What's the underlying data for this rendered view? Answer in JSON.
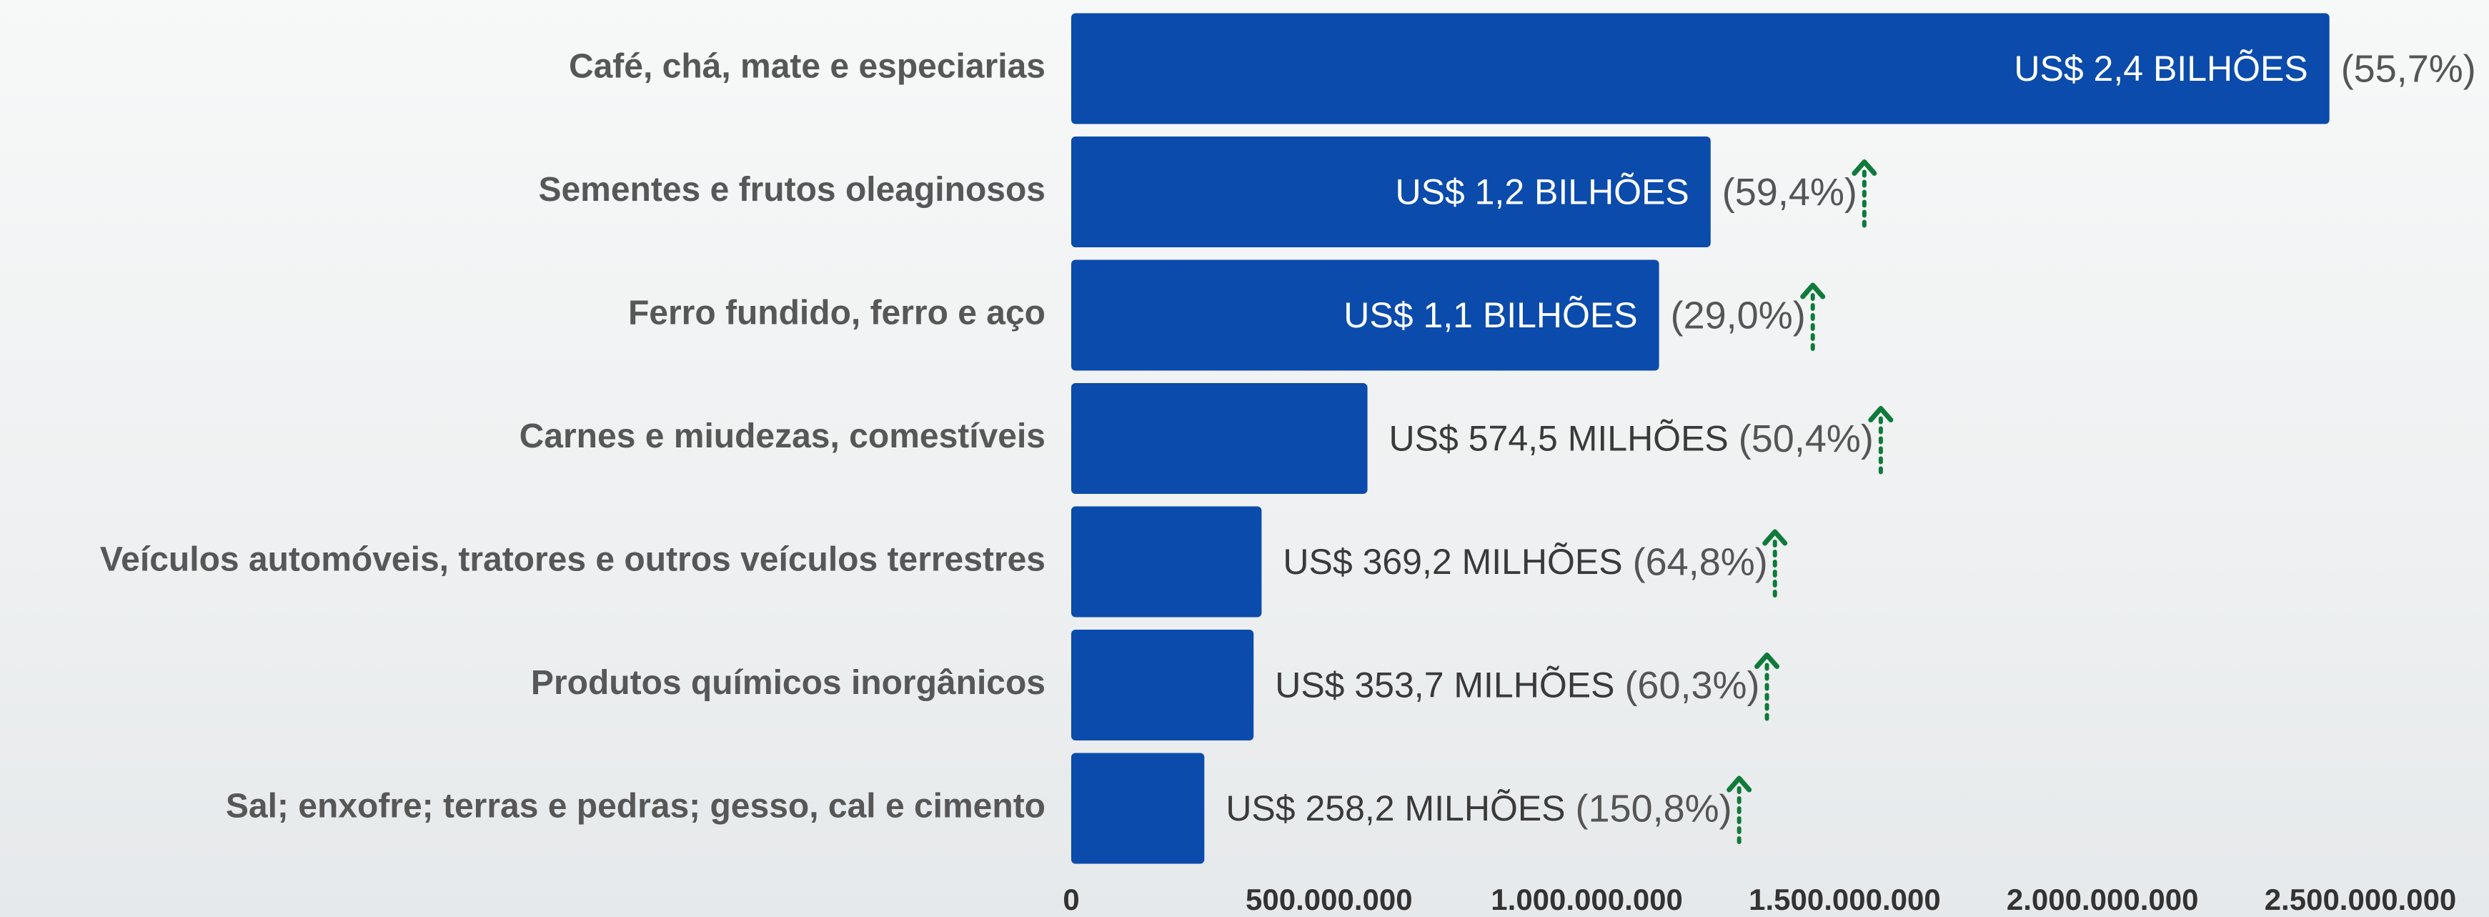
{
  "chart_data": {
    "type": "bar",
    "orientation": "horizontal",
    "color": "#0b4bab",
    "categories": [
      "Café, chá, mate e especiarias",
      "Sementes e frutos oleaginosos",
      "Ferro fundido, ferro e aço",
      "Carnes e miudezas, comestíveis",
      "Veículos automóveis, tratores e outros veículos terrestres",
      "Produtos químicos inorgânicos",
      "Sal; enxofre; terras e pedras; gesso, cal e cimento"
    ],
    "values": [
      2440000000,
      1240000000,
      1140000000,
      574500000,
      369200000,
      353700000,
      258200000
    ],
    "value_labels": [
      "US$ 2,4 BILHÕES",
      "US$ 1,2 BILHÕES",
      "US$ 1,1 BILHÕES",
      "US$ 574,5 MILHÕES",
      "US$ 369,2 MILHÕES",
      "US$ 353,7 MILHÕES",
      "US$ 258,2 MILHÕES"
    ],
    "growth_labels": [
      "(55,7%)",
      "(59,4%)",
      "(29,0%)",
      "(50,4%)",
      "(64,8%)",
      "(60,3%)",
      "(150,8%)"
    ],
    "xlim": [
      0,
      2500000000
    ],
    "xticks": [
      0,
      {
        "value": 500000000,
        "label": "500.000.000"
      },
      {
        "value": 1000000000,
        "label": "1.000.000.000"
      },
      {
        "value": 1500000000,
        "label": "1.500.000.000"
      },
      {
        "value": 2000000000,
        "label": "2.000.000.000"
      },
      {
        "value": 2500000000,
        "label": "2.500.000.000"
      }
    ]
  }
}
